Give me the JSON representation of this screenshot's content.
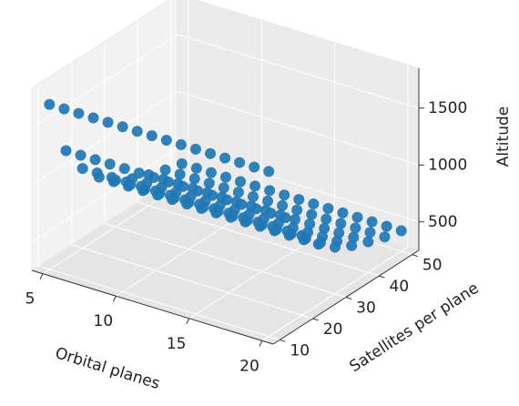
{
  "chart_data": {
    "type": "scatter3d",
    "color": "#1f77b4",
    "grid": true,
    "xlabel": "Orbital planes",
    "ylabel": "Satellites per plane",
    "zlabel": "Altitude",
    "xlim": [
      4.25,
      20.75
    ],
    "ylim": [
      8,
      52
    ],
    "zlim": [
      250,
      1850
    ],
    "xticks": [
      5,
      10,
      15,
      20
    ],
    "yticks": [
      10,
      20,
      30,
      40,
      50
    ],
    "zticks": [
      500,
      1000,
      1500
    ],
    "x": [
      5,
      6,
      7,
      8,
      9,
      10,
      11,
      12,
      13,
      14,
      15,
      16,
      17,
      18,
      19,
      20,
      5,
      6,
      7,
      8,
      9,
      10,
      11,
      12,
      13,
      14,
      15,
      16,
      17,
      18,
      19,
      20,
      5,
      6,
      7,
      8,
      9,
      10,
      11,
      12,
      13,
      14,
      15,
      16,
      17,
      18,
      19,
      20,
      5,
      6,
      7,
      8,
      9,
      10,
      11,
      12,
      13,
      14,
      15,
      16,
      17,
      18,
      19,
      20,
      5,
      6,
      7,
      8,
      9,
      10,
      11,
      12,
      13,
      14,
      15,
      16,
      17,
      18,
      19,
      20,
      5,
      6,
      7,
      8,
      9,
      10,
      11,
      12,
      13,
      14,
      15,
      16,
      17,
      18,
      19,
      20,
      5,
      6,
      7,
      8,
      9,
      10,
      11,
      12,
      13,
      14,
      15,
      16,
      17,
      18,
      19,
      20,
      5,
      6,
      7,
      8,
      9,
      10,
      11,
      12,
      13,
      14,
      15,
      16,
      17,
      18,
      19,
      20,
      5,
      6,
      7,
      8,
      9,
      10,
      11,
      12,
      13,
      14,
      15,
      16,
      17,
      18,
      19,
      20
    ],
    "y": [
      10,
      10,
      10,
      10,
      10,
      10,
      10,
      10,
      10,
      10,
      10,
      10,
      10,
      10,
      10,
      10,
      15,
      15,
      15,
      15,
      15,
      15,
      15,
      15,
      15,
      15,
      15,
      15,
      15,
      15,
      15,
      15,
      20,
      20,
      20,
      20,
      20,
      20,
      20,
      20,
      20,
      20,
      20,
      20,
      20,
      20,
      20,
      20,
      25,
      25,
      25,
      25,
      25,
      25,
      25,
      25,
      25,
      25,
      25,
      25,
      25,
      25,
      25,
      25,
      30,
      30,
      30,
      30,
      30,
      30,
      30,
      30,
      30,
      30,
      30,
      30,
      30,
      30,
      30,
      30,
      35,
      35,
      35,
      35,
      35,
      35,
      35,
      35,
      35,
      35,
      35,
      35,
      35,
      35,
      35,
      35,
      40,
      40,
      40,
      40,
      40,
      40,
      40,
      40,
      40,
      40,
      40,
      40,
      40,
      40,
      40,
      40,
      45,
      45,
      45,
      45,
      45,
      45,
      45,
      45,
      45,
      45,
      45,
      45,
      45,
      45,
      45,
      45,
      50,
      50,
      50,
      50,
      50,
      50,
      50,
      50,
      50,
      50,
      50,
      50,
      50,
      50,
      50,
      50
    ],
    "z": [
      1700,
      1700,
      1700,
      1700,
      1700,
      1700,
      1700,
      1700,
      1700,
      1700,
      1700,
      1700,
      1700,
      1700,
      1700,
      1700,
      1200,
      1200,
      1200,
      1200,
      1200,
      1200,
      1200,
      1200,
      1200,
      1200,
      1200,
      1200,
      1200,
      1200,
      1200,
      1200,
      950,
      950,
      950,
      950,
      950,
      950,
      950,
      950,
      950,
      950,
      950,
      950,
      950,
      950,
      950,
      950,
      780,
      780,
      780,
      780,
      780,
      780,
      780,
      780,
      780,
      780,
      780,
      780,
      780,
      780,
      780,
      780,
      660,
      660,
      660,
      660,
      660,
      660,
      660,
      660,
      660,
      660,
      660,
      660,
      660,
      660,
      660,
      660,
      580,
      580,
      580,
      580,
      580,
      580,
      580,
      580,
      580,
      580,
      580,
      580,
      580,
      580,
      580,
      580,
      520,
      520,
      520,
      520,
      520,
      520,
      520,
      520,
      520,
      520,
      520,
      520,
      520,
      520,
      520,
      520,
      470,
      470,
      470,
      470,
      470,
      470,
      470,
      470,
      470,
      470,
      470,
      470,
      470,
      470,
      470,
      470,
      430,
      430,
      430,
      430,
      430,
      430,
      430,
      430,
      430,
      430,
      430,
      430,
      430,
      430,
      430,
      430
    ]
  }
}
